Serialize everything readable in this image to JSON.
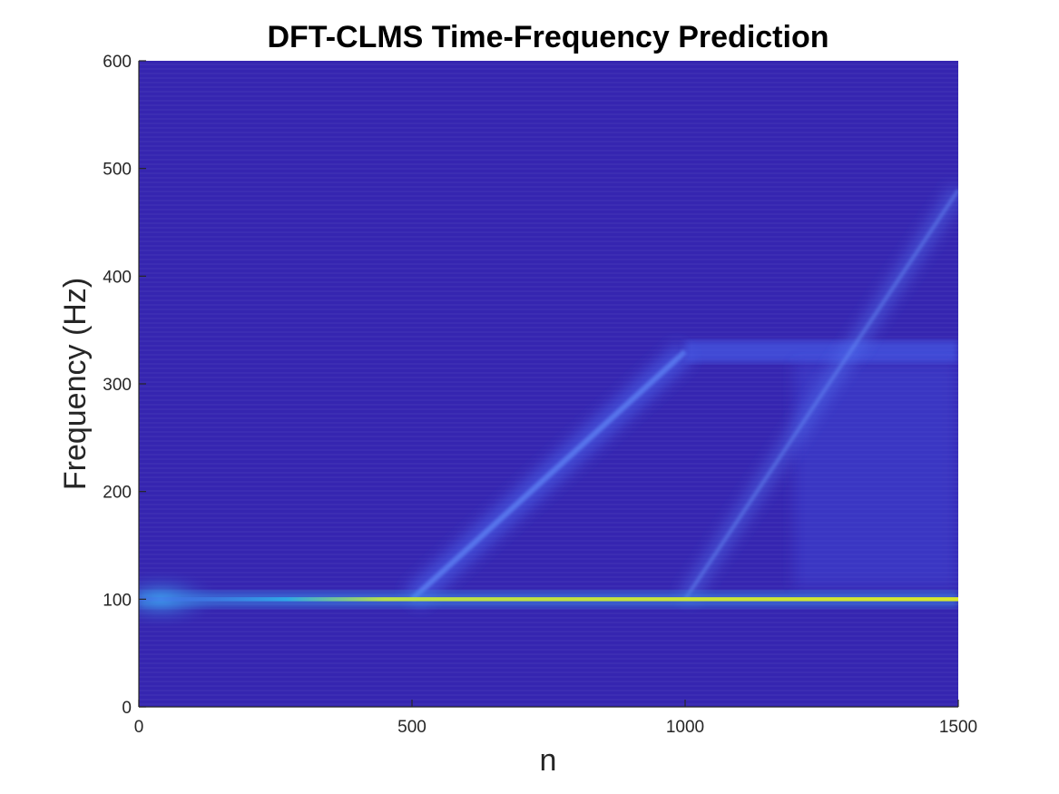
{
  "chart_data": {
    "type": "heatmap",
    "title": "DFT-CLMS Time-Frequency Prediction",
    "xlabel": "n",
    "ylabel": "Frequency (Hz)",
    "xlim": [
      0,
      1500
    ],
    "ylim": [
      0,
      600
    ],
    "x_ticks": [
      0,
      500,
      1000,
      1500
    ],
    "y_ticks": [
      0,
      100,
      200,
      300,
      400,
      500,
      600
    ],
    "colormap": "parula",
    "background_color": "#3525b0",
    "peak_color": "#d8e82c",
    "features": [
      {
        "name": "constant 100 Hz ridge",
        "n_start": 0,
        "n_end": 1500,
        "freq_start": 100,
        "freq_end": 100
      },
      {
        "name": "linear chirp",
        "n_start": 500,
        "n_end": 1000,
        "freq_start": 100,
        "freq_end": 330
      },
      {
        "name": "330 Hz plateau",
        "n_start": 1000,
        "n_end": 1500,
        "freq_start": 330,
        "freq_end": 330
      },
      {
        "name": "rising component",
        "n_start": 1000,
        "n_end": 1500,
        "freq_start": 100,
        "freq_end": 480
      }
    ]
  }
}
